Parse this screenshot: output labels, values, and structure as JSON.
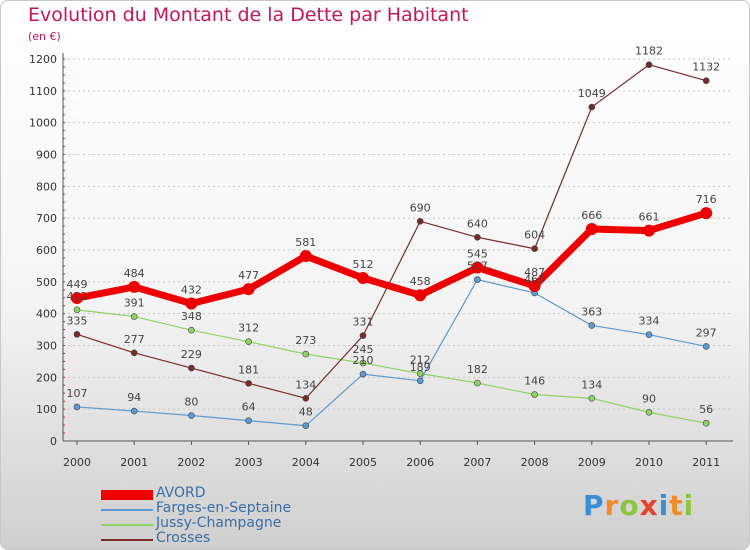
{
  "title": "Evolution du Montant de la Dette par Habitant",
  "subtitle": "(en €)",
  "logo_text": "Proxiti",
  "chart_data": {
    "type": "line",
    "title": "Evolution du Montant de la Dette par Habitant",
    "ylabel": "(en €)",
    "xlabel": "",
    "x": [
      "2000",
      "2001",
      "2002",
      "2003",
      "2004",
      "2005",
      "2006",
      "2007",
      "2008",
      "2009",
      "2010",
      "2011"
    ],
    "y_ticks": [
      "0",
      "100",
      "200",
      "300",
      "400",
      "500",
      "600",
      "700",
      "800",
      "900",
      "1000",
      "1100",
      "1200"
    ],
    "ylim": [
      0,
      1200
    ],
    "grid": "horizontal, dashed",
    "legend_position": "bottom-left",
    "series": [
      {
        "name": "AVORD",
        "color": "#ee0000",
        "values": [
          449,
          484,
          432,
          477,
          581,
          512,
          458,
          545,
          487,
          666,
          661,
          716
        ],
        "labels": [
          "449",
          "484",
          "432",
          "477",
          "581",
          "512",
          "458",
          "545",
          "487",
          "666",
          "661",
          "716"
        ]
      },
      {
        "name": "Farges-en-Septaine",
        "color": "#5b9bd5",
        "values": [
          107,
          94,
          80,
          64,
          48,
          210,
          189,
          507,
          465,
          363,
          334,
          297
        ],
        "labels": [
          "107",
          "94",
          "80",
          "64",
          "48",
          "210",
          "189",
          "507",
          "465",
          "363",
          "334",
          "297"
        ]
      },
      {
        "name": "Jussy-Champagne",
        "color": "#8ed460",
        "values": [
          412,
          391,
          348,
          312,
          273,
          245,
          212,
          182,
          146,
          134,
          90,
          56
        ],
        "labels": [
          "412",
          "391",
          "348",
          "312",
          "273",
          "245",
          "212",
          "182",
          "146",
          "134",
          "90",
          "56"
        ]
      },
      {
        "name": "Crosses",
        "color": "#7a2a2a",
        "values": [
          335,
          277,
          229,
          181,
          134,
          331,
          690,
          640,
          604,
          1049,
          1182,
          1132
        ],
        "labels": [
          "335",
          "277",
          "229",
          "181",
          "134",
          "331",
          "690",
          "640",
          "604",
          "1049",
          "1182",
          "1132"
        ]
      }
    ]
  }
}
